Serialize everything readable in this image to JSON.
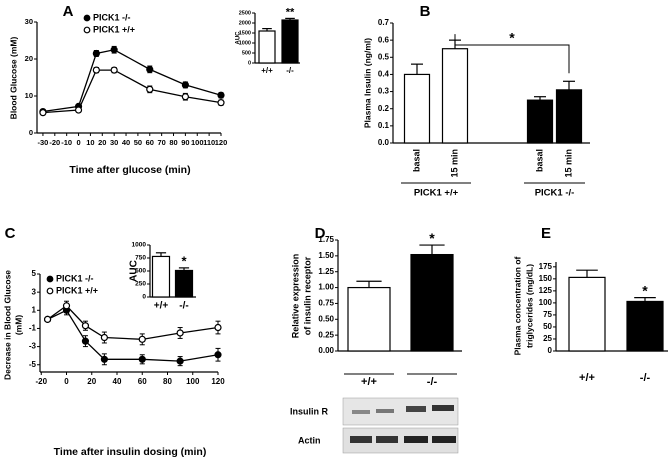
{
  "chart_data": [
    {
      "type": "line",
      "panel": "A",
      "xlabel": "Time after glucose (min)",
      "ylabel": "Blood Glucose (mM)",
      "xlim": [
        -35,
        120
      ],
      "xticks": [
        -30,
        -20,
        -10,
        0,
        10,
        20,
        30,
        40,
        50,
        60,
        70,
        80,
        90,
        100,
        110,
        120
      ],
      "ylim": [
        0,
        30
      ],
      "yticks": [
        0,
        10,
        20,
        30
      ],
      "series": [
        {
          "name": "PICK1 -/-",
          "color": "#000000",
          "x": [
            -30,
            0,
            15,
            30,
            60,
            90,
            120
          ],
          "values": [
            5.8,
            7.2,
            21.5,
            22.5,
            17.2,
            13,
            10.2
          ],
          "errors": [
            0.4,
            0.5,
            0.8,
            0.9,
            0.9,
            0.8,
            0.7
          ]
        },
        {
          "name": "PICK1 +/+",
          "color": "#ffffff",
          "x": [
            -30,
            0,
            15,
            30,
            60,
            90,
            120
          ],
          "values": [
            5.5,
            6.2,
            17,
            17,
            11.8,
            9.8,
            8.2
          ],
          "errors": [
            0.4,
            0.4,
            0.7,
            0.7,
            0.9,
            0.9,
            0.7
          ]
        }
      ]
    },
    {
      "type": "bar",
      "ylabel": "AUC",
      "categories": [
        "+/+",
        "-/-"
      ],
      "values": [
        1600,
        2150
      ],
      "errors": [
        120,
        80
      ],
      "colors": [
        "#ffffff",
        "#000000"
      ],
      "ylim": [
        0,
        2500
      ],
      "yticks": [
        0,
        500,
        1000,
        1500,
        2000,
        2500
      ],
      "annotation": "**"
    },
    {
      "type": "grouped_bar",
      "panel": "B",
      "ylabel": "Plasma Insulin (ng/ml)",
      "categories": [
        "basal",
        "15 min"
      ],
      "ylim": [
        0,
        0.7
      ],
      "yticks": [
        {
          "value": 0,
          "label": "0.0"
        },
        0.1,
        0.2,
        0.3,
        0.4,
        0.5,
        0.6,
        0.7
      ],
      "annotation": "*",
      "series": [
        {
          "name": "PICK1 +/+",
          "color": "#ffffff",
          "values": [
            0.4,
            0.55
          ],
          "errors": [
            0.06,
            0.05
          ]
        },
        {
          "name": "PICK1 -/-",
          "color": "#000000",
          "values": [
            0.25,
            0.31
          ],
          "errors": [
            0.02,
            0.05
          ]
        }
      ]
    },
    {
      "type": "line",
      "panel": "C",
      "xlabel": "Time after insulin dosing (min)",
      "ylabel": [
        "Decrease in Blood Glucose",
        "(mM)"
      ],
      "xlim": [
        -21,
        120
      ],
      "xticks": [
        -20,
        0,
        20,
        40,
        60,
        80,
        100,
        120
      ],
      "ylim": [
        -5.8,
        5
      ],
      "yticks": [
        -5,
        -3,
        -1,
        1,
        3,
        5
      ],
      "series": [
        {
          "name": "PICK1 -/-",
          "color": "#000000",
          "x": [
            -15,
            0,
            15,
            30,
            60,
            90,
            120
          ],
          "values": [
            0,
            1,
            -2.4,
            -4.4,
            -4.4,
            -4.6,
            -3.9
          ],
          "errors": [
            0.2,
            0.5,
            0.6,
            0.6,
            0.5,
            0.5,
            0.7
          ]
        },
        {
          "name": "PICK1 +/+",
          "color": "#ffffff",
          "x": [
            -15,
            0,
            15,
            30,
            60,
            90,
            120
          ],
          "values": [
            0,
            1.5,
            -0.7,
            -2,
            -2.2,
            -1.5,
            -0.9
          ],
          "errors": [
            0.2,
            0.5,
            0.5,
            0.6,
            0.6,
            0.6,
            0.7
          ]
        }
      ]
    },
    {
      "type": "bar",
      "ylabel": "AUC",
      "categories": [
        "+/+",
        "-/-"
      ],
      "values": [
        780,
        510
      ],
      "errors": [
        70,
        50
      ],
      "colors": [
        "#ffffff",
        "#000000"
      ],
      "ylim": [
        0,
        1000
      ],
      "yticks": [
        0,
        250,
        500,
        750,
        1000
      ],
      "annotation": "*"
    },
    {
      "type": "bar",
      "panel": "D",
      "ylabel": [
        "Relative expression",
        "of insulin receptor"
      ],
      "categories": [
        "+/+",
        "-/-"
      ],
      "values": [
        1,
        1.52
      ],
      "errors": [
        0.1,
        0.15
      ],
      "colors": [
        "#ffffff",
        "#000000"
      ],
      "ylim": [
        0,
        1.75
      ],
      "yticks": [
        {
          "value": 0,
          "label": "0.00"
        },
        {
          "value": 0.25,
          "label": "0.25"
        },
        {
          "value": 0.5,
          "label": "0.50"
        },
        {
          "value": 0.75,
          "label": "0.75"
        },
        {
          "value": 1,
          "label": "1.00"
        },
        {
          "value": 1.25,
          "label": "1.25"
        },
        {
          "value": 1.5,
          "label": "1.50"
        },
        {
          "value": 1.75,
          "label": "1.75"
        }
      ],
      "annotation": "*",
      "blot_labels": [
        "Insulin R",
        "Actin"
      ]
    },
    {
      "type": "bar",
      "panel": "E",
      "ylabel": [
        "Plasma concentration of",
        "triglycerides (mg/dL)"
      ],
      "categories": [
        "+/+",
        "-/-"
      ],
      "values": [
        153,
        103
      ],
      "errors": [
        15,
        8
      ],
      "colors": [
        "#ffffff",
        "#000000"
      ],
      "ylim": [
        0,
        185
      ],
      "yticks": [
        0,
        25,
        50,
        75,
        100,
        125,
        150,
        175
      ],
      "annotation": "*"
    }
  ]
}
